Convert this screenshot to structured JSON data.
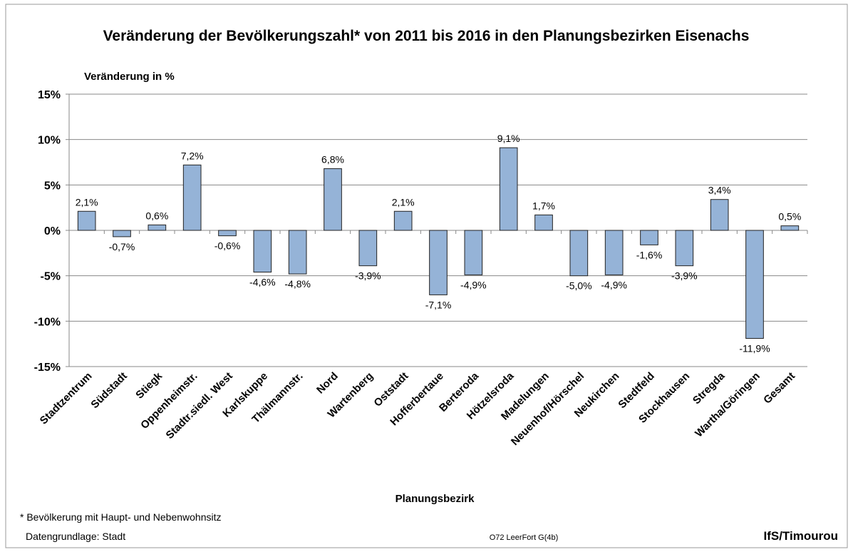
{
  "chart_data": {
    "type": "bar",
    "title": "Veränderung der Bevölkerungszahl* von 2011 bis 2016 in den Planungsbezirken Eisenachs",
    "y_label": "Veränderung in %",
    "x_label": "Planungsbezirk",
    "footnote": "* Bevölkerung mit Haupt- und Nebenwohnsitz",
    "source": "Datengrundlage: Stadt",
    "code": "O72 LeerFort G(4b)",
    "author": "IfS/Timourou",
    "categories": [
      "Stadtzentrum",
      "Südstadt",
      "Stiegk",
      "Oppenheimstr.",
      "Stadtr.siedl. West",
      "Karlskuppe",
      "Thälmannstr.",
      "Nord",
      "Wartenberg",
      "Oststadt",
      "Hofferbertaue",
      "Berteroda",
      "Hötzelsroda",
      "Madelungen",
      "Neuenhof/Hörschel",
      "Neukirchen",
      "Stedtfeld",
      "Stockhausen",
      "Stregda",
      "Wartha/Göringen",
      "Gesamt"
    ],
    "values": [
      2.1,
      -0.7,
      0.6,
      7.2,
      -0.6,
      -4.6,
      -4.8,
      6.8,
      -3.9,
      2.1,
      -7.1,
      -4.9,
      9.1,
      1.7,
      -5.0,
      -4.9,
      -1.6,
      -3.9,
      3.4,
      -11.9,
      0.5
    ],
    "value_labels": [
      "2,1%",
      "-0,7%",
      "0,6%",
      "7,2%",
      "-0,6%",
      "-4,6%",
      "-4,8%",
      "6,8%",
      "-3,9%",
      "2,1%",
      "-7,1%",
      "-4,9%",
      "9,1%",
      "1,7%",
      "-5,0%",
      "-4,9%",
      "-1,6%",
      "-3,9%",
      "3,4%",
      "-11,9%",
      "0,5%"
    ],
    "color": "#95b3d7",
    "ylim": [
      -15,
      15
    ],
    "yticks": [
      {
        "value": -15,
        "label": "-15%"
      },
      {
        "value": -10,
        "label": "-10%"
      },
      {
        "value": -5,
        "label": "-5%"
      },
      {
        "value": 0,
        "label": "0%"
      },
      {
        "value": 5,
        "label": "5%"
      },
      {
        "value": 10,
        "label": "10%"
      },
      {
        "value": 15,
        "label": "15%"
      }
    ],
    "grid": true
  }
}
